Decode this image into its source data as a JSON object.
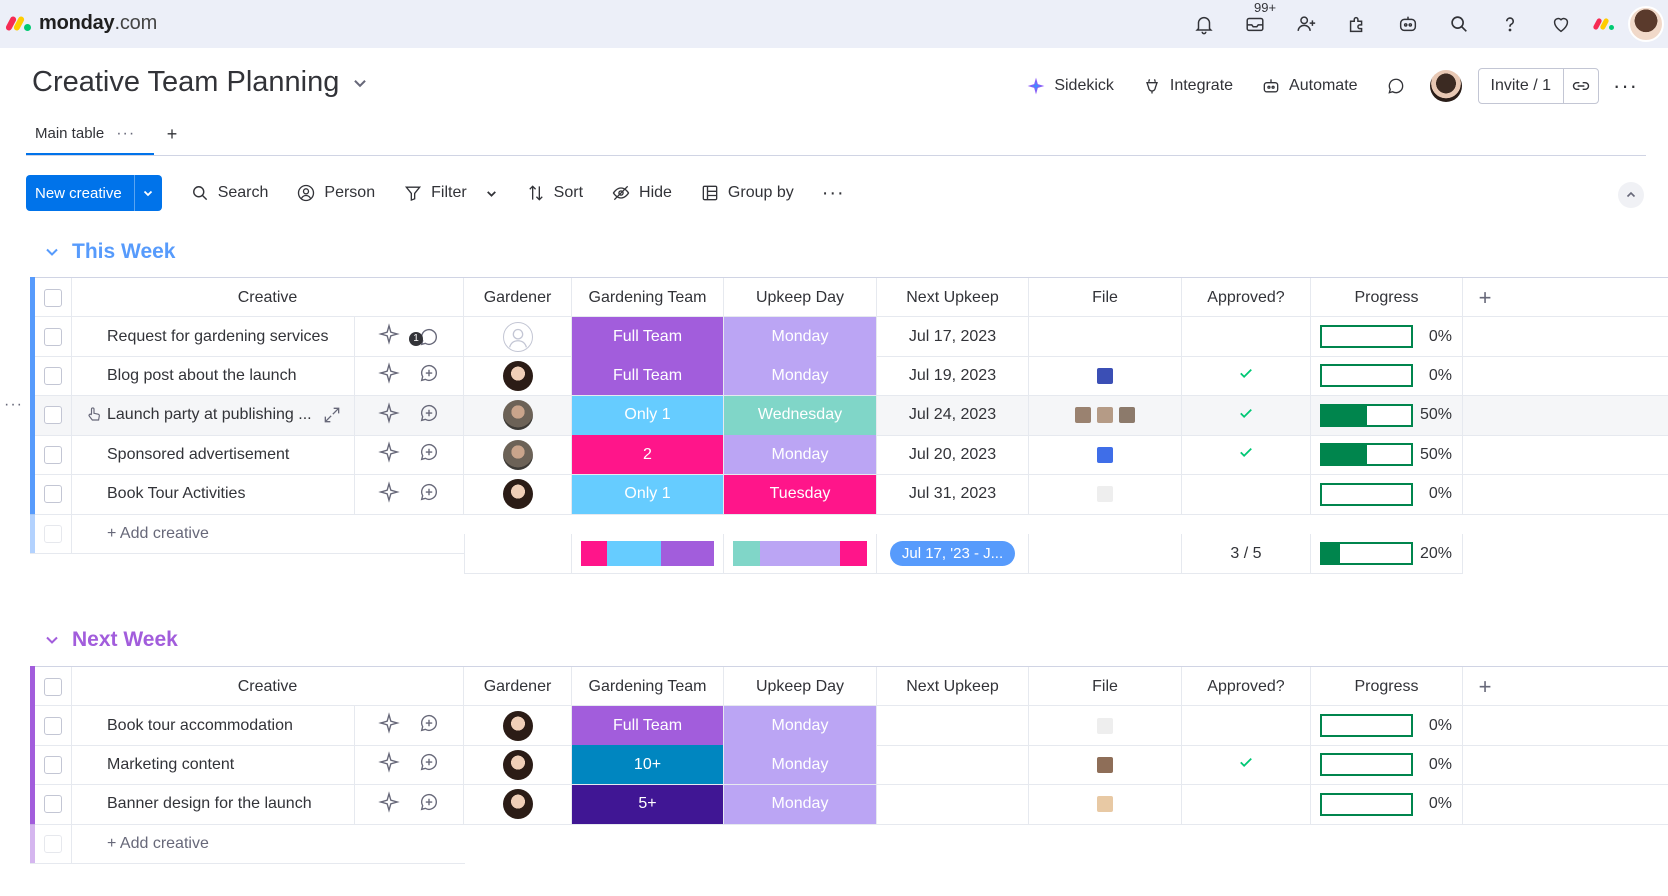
{
  "app": {
    "brand": "monday",
    "brand_suffix": ".com",
    "notifications_badge": "99+",
    "logo_colors": [
      "#f62b54",
      "#ffcc00",
      "#00ca72"
    ]
  },
  "board": {
    "title": "Creative Team Planning",
    "actions": {
      "sidekick": "Sidekick",
      "integrate": "Integrate",
      "automate": "Automate",
      "invite": "Invite / 1"
    },
    "views": {
      "main_table": "Main table"
    }
  },
  "toolbar": {
    "new_item": "New creative",
    "search": "Search",
    "person": "Person",
    "filter": "Filter",
    "sort": "Sort",
    "hide": "Hide",
    "group_by": "Group by"
  },
  "columns": {
    "creative": "Creative",
    "gardener": "Gardener",
    "gardening_team": "Gardening Team",
    "upkeep_day": "Upkeep Day",
    "next_upkeep": "Next Upkeep",
    "file": "File",
    "approved": "Approved?",
    "progress": "Progress"
  },
  "colors": {
    "full_team": "#a25ddc",
    "only1": "#66ccff",
    "two": "#ff158a",
    "monday": "#bba5f4",
    "wednesday": "#80d6c8",
    "tuesday": "#ff158a",
    "ten_plus": "#0086c0",
    "five_plus": "#401694",
    "this_week": "#579bfc",
    "next_week": "#a25ddc",
    "progress": "#00854d",
    "approved_check": "#00c875"
  },
  "groups": [
    {
      "name": "This Week",
      "color": "#579bfc",
      "add_label": "+ Add creative",
      "items": [
        {
          "name": "Request for gardening services",
          "gardener": "empty",
          "team": "Full Team",
          "team_color": "#a25ddc",
          "day": "Monday",
          "day_color": "#bba5f4",
          "next": "Jul 17, 2023",
          "files": [],
          "approved": false,
          "progress": 0,
          "progress_label": "0%",
          "updates": "1"
        },
        {
          "name": "Blog post about the launch",
          "gardener": "p1",
          "team": "Full Team",
          "team_color": "#a25ddc",
          "day": "Monday",
          "day_color": "#bba5f4",
          "next": "Jul 19, 2023",
          "files": [
            "#3b4fb5"
          ],
          "approved": true,
          "progress": 0,
          "progress_label": "0%"
        },
        {
          "name": "Launch party at publishing ...",
          "gardener": "p2",
          "team": "Only 1",
          "team_color": "#66ccff",
          "day": "Wednesday",
          "day_color": "#80d6c8",
          "next": "Jul 24, 2023",
          "files": [
            "#9a8270",
            "#b59b86",
            "#8c7a6b"
          ],
          "approved": true,
          "progress": 0.5,
          "progress_label": "50%"
        },
        {
          "name": "Sponsored advertisement",
          "gardener": "p2",
          "team": "2",
          "team_color": "#ff158a",
          "day": "Monday",
          "day_color": "#bba5f4",
          "next": "Jul 20, 2023",
          "files": [
            "#3f6ee8"
          ],
          "approved": true,
          "progress": 0.5,
          "progress_label": "50%"
        },
        {
          "name": "Book Tour Activities",
          "gardener": "p1",
          "team": "Only 1",
          "team_color": "#66ccff",
          "day": "Tuesday",
          "day_color": "#ff158a",
          "next": "Jul 31, 2023",
          "files": [
            "#eeeeee"
          ],
          "approved": false,
          "progress": 0,
          "progress_label": "0%"
        }
      ],
      "summary": {
        "team_dist": [
          {
            "color": "#ff158a",
            "weight": 1
          },
          {
            "color": "#66ccff",
            "weight": 2
          },
          {
            "color": "#a25ddc",
            "weight": 2
          }
        ],
        "day_dist": [
          {
            "color": "#80d6c8",
            "weight": 1
          },
          {
            "color": "#bba5f4",
            "weight": 3
          },
          {
            "color": "#ff158a",
            "weight": 1
          }
        ],
        "date_range": "Jul 17, '23 - J...",
        "approved": "3 / 5",
        "progress": 0.2,
        "progress_label": "20%"
      }
    },
    {
      "name": "Next Week",
      "color": "#a25ddc",
      "add_label": "+ Add creative",
      "items": [
        {
          "name": "Book tour accommodation",
          "gardener": "p1",
          "team": "Full Team",
          "team_color": "#a25ddc",
          "day": "Monday",
          "day_color": "#bba5f4",
          "next": "",
          "files": [
            "#eeeeee"
          ],
          "approved": false,
          "progress": 0,
          "progress_label": "0%"
        },
        {
          "name": "Marketing content",
          "gardener": "p1",
          "team": "10+",
          "team_color": "#0086c0",
          "day": "Monday",
          "day_color": "#bba5f4",
          "next": "",
          "files": [
            "#8e6e58"
          ],
          "approved": true,
          "progress": 0,
          "progress_label": "0%"
        },
        {
          "name": "Banner design for the launch",
          "gardener": "p1",
          "team": "5+",
          "team_color": "#401694",
          "day": "Monday",
          "day_color": "#bba5f4",
          "next": "",
          "files": [
            "#e8c9a4"
          ],
          "approved": false,
          "progress": 0,
          "progress_label": "0%"
        }
      ]
    }
  ]
}
